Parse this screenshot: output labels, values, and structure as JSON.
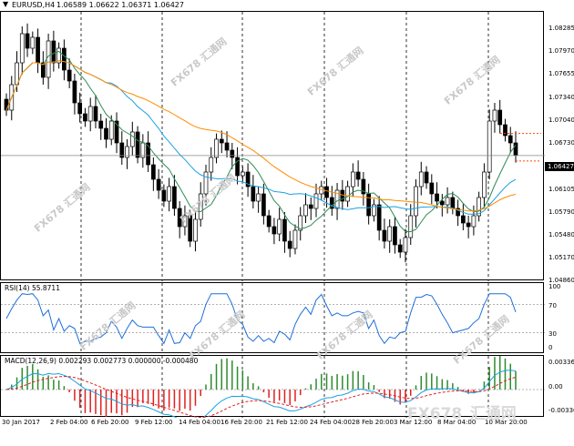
{
  "symbol_header": {
    "symbol": "EURUSD,H4",
    "values": "1.06589 1.06622 1.06371 1.06427"
  },
  "price_axis": [
    "1.08285",
    "1.07970",
    "1.07655",
    "1.07340",
    "1.07040",
    "1.06730",
    "1.06427",
    "1.06105",
    "1.05790",
    "1.05480",
    "1.05170",
    "1.04860"
  ],
  "current_price": "1.06427",
  "rsi": {
    "label": "RSI(14) 55.8711",
    "levels": [
      "100",
      "70",
      "30",
      "0"
    ]
  },
  "macd": {
    "label": "MACD(12,26,9) 0.002293 0.002773 0.000000 -0.000480",
    "levels": [
      "0.003369",
      "0.00",
      "-0.003365"
    ]
  },
  "time_axis": [
    "30 Jan 2017",
    "2 Feb 04:00",
    "6 Feb 20:00",
    "9 Feb 12:00",
    "14 Feb 04:00",
    "16 Feb 20:00",
    "21 Feb 12:00",
    "24 Feb 04:00",
    "28 Feb 20:00",
    "3 Mar 12:00",
    "8 Mar 04:00",
    "10 Mar 20:00"
  ],
  "watermark": "FX678 汇通网",
  "logo": {
    "text": "FX678",
    "cn": "汇通网"
  },
  "colors": {
    "bull_candle": "#ffffff",
    "bear_candle": "#000000",
    "ma_fast": "#2e8b57",
    "ma_mid": "#1ba1e2",
    "ma_slow": "#ff8c00",
    "rsi_line": "#1e6fd9",
    "macd_hist_pos": "#2e8b2e",
    "macd_hist_neg": "#e02020",
    "macd_signal": "#e02020",
    "macd_line": "#1ba1e2",
    "arrow": "#ff4500"
  },
  "chart_data": {
    "type": "candlestick",
    "title": "EURUSD,H4",
    "ylim": [
      1.047,
      1.084
    ],
    "closes": [
      1.0705,
      1.074,
      1.077,
      1.081,
      1.079,
      1.0805,
      1.077,
      1.075,
      1.08,
      1.077,
      1.079,
      1.076,
      1.0745,
      1.0715,
      1.07,
      1.069,
      1.071,
      1.069,
      1.068,
      1.0665,
      1.069,
      1.066,
      1.064,
      1.0655,
      1.0675,
      1.064,
      1.066,
      1.063,
      1.061,
      1.0595,
      1.058,
      1.06,
      1.057,
      1.0545,
      1.056,
      1.0525,
      1.0555,
      1.059,
      1.062,
      1.064,
      1.0665,
      1.066,
      1.065,
      1.064,
      1.0615,
      1.062,
      1.06,
      1.058,
      1.059,
      1.056,
      1.0545,
      1.0535,
      1.0555,
      1.0525,
      1.0515,
      1.054,
      1.056,
      1.0575,
      1.057,
      1.059,
      1.06,
      1.0585,
      1.057,
      1.0595,
      1.058,
      1.06,
      1.062,
      1.061,
      1.059,
      1.056,
      1.0575,
      1.054,
      1.0525,
      1.0545,
      1.052,
      1.051,
      1.053,
      1.056,
      1.06,
      1.062,
      1.0605,
      1.059,
      1.058,
      1.0575,
      1.0585,
      1.057,
      1.056,
      1.055,
      1.0545,
      1.056,
      1.0585,
      1.062,
      1.069,
      1.0705,
      1.0685,
      1.067,
      1.066,
      1.0643
    ]
  }
}
